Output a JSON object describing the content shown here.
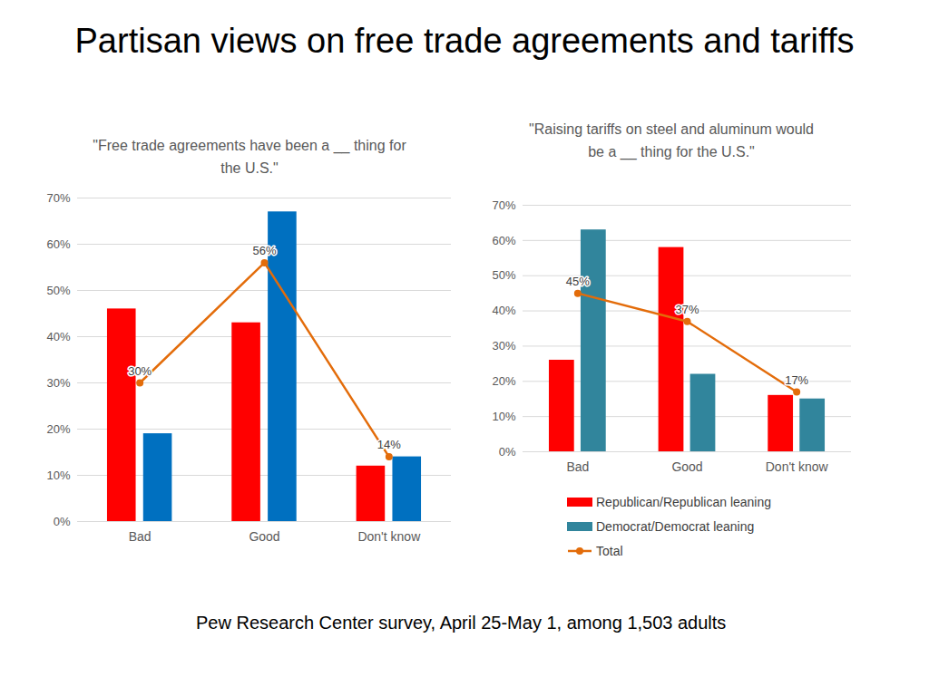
{
  "title": "Partisan views on free trade agreements and tariffs",
  "source": "Pew Research Center survey,  April 25-May 1, among 1,503 adults",
  "chart_data": [
    {
      "type": "bar",
      "title": "\"Free trade agreements have been a __ thing for the U.S.\"",
      "categories": [
        "Bad",
        "Good",
        "Don't know"
      ],
      "series": [
        {
          "name": "Republican/Republican leaning",
          "color": "#ff0000",
          "values": [
            46,
            43,
            12
          ]
        },
        {
          "name": "Democrat/Democrat leaning",
          "color": "#0070c0",
          "values": [
            19,
            67,
            14
          ]
        },
        {
          "name": "Total",
          "type": "line",
          "color": "#e36c0a",
          "marker": "circle",
          "line_style": "solid",
          "values": [
            30,
            56,
            14
          ],
          "data_labels": true,
          "value_labels": [
            "30%",
            "56%",
            "14%"
          ]
        }
      ],
      "ylim": [
        0,
        70
      ],
      "yticks": [
        {
          "value": 0,
          "label": "0%"
        },
        {
          "value": 10,
          "label": "10%"
        },
        {
          "value": 20,
          "label": "20%"
        },
        {
          "value": 30,
          "label": "30%"
        },
        {
          "value": 40,
          "label": "40%"
        },
        {
          "value": 50,
          "label": "50%"
        },
        {
          "value": 60,
          "label": "60%"
        },
        {
          "value": 70,
          "label": "70%"
        }
      ],
      "grid": true
    },
    {
      "type": "bar",
      "title": "\"Raising tariffs on steel and aluminum would be a __ thing for the U.S.\"",
      "categories": [
        "Bad",
        "Good",
        "Don't know"
      ],
      "series": [
        {
          "name": "Republican/Republican leaning",
          "color": "#ff0000",
          "values": [
            26,
            58,
            16
          ]
        },
        {
          "name": "Democrat/Democrat leaning",
          "color": "#31859c",
          "values": [
            63,
            22,
            15
          ]
        },
        {
          "name": "Total",
          "type": "line",
          "color": "#e36c0a",
          "marker": "circle",
          "line_style": "solid",
          "values": [
            45,
            37,
            17
          ],
          "data_labels": true,
          "value_labels": [
            "45%",
            "37%",
            "17%"
          ]
        }
      ],
      "ylim": [
        0,
        70
      ],
      "yticks": [
        {
          "value": 0,
          "label": "0%"
        },
        {
          "value": 10,
          "label": "10%"
        },
        {
          "value": 20,
          "label": "20%"
        },
        {
          "value": 30,
          "label": "30%"
        },
        {
          "value": 40,
          "label": "40%"
        },
        {
          "value": 50,
          "label": "50%"
        },
        {
          "value": 60,
          "label": "60%"
        },
        {
          "value": 70,
          "label": "70%"
        }
      ],
      "grid": true,
      "legend": "bottom"
    }
  ]
}
